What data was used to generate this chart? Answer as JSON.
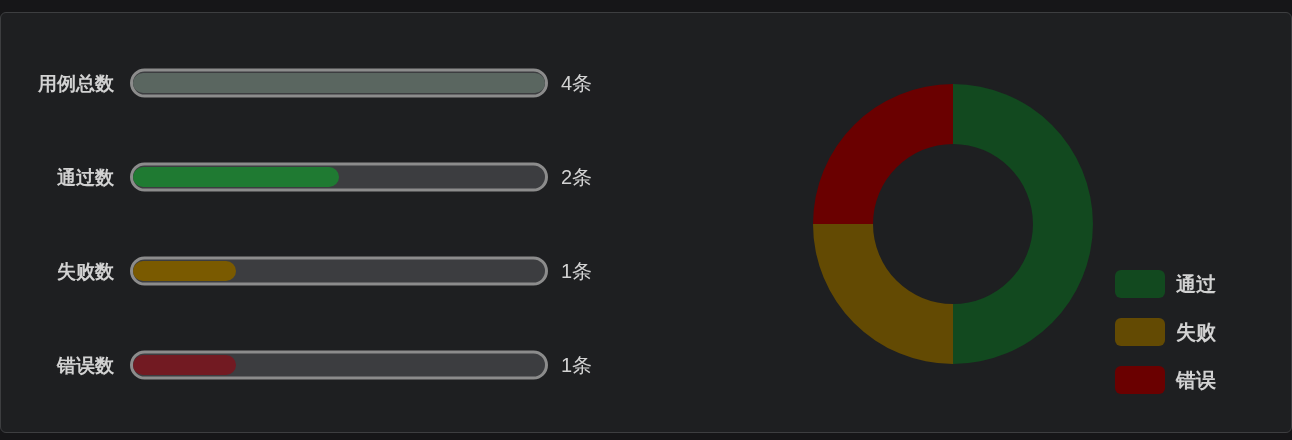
{
  "chart_data": [
    {
      "type": "bar",
      "orientation": "horizontal",
      "categories": [
        "用例总数",
        "通过数",
        "失败数",
        "错误数"
      ],
      "values": [
        4,
        2,
        1,
        1
      ],
      "colors": [
        "#5a6660",
        "#1f7a32",
        "#7a5a00",
        "#721a22"
      ],
      "value_labels": [
        "4条",
        "2条",
        "1条",
        "1条"
      ],
      "xlim": [
        0,
        4
      ],
      "tick_labels": "y"
    },
    {
      "type": "donut",
      "categories": [
        "通过",
        "失败",
        "错误"
      ],
      "values": [
        50,
        25,
        25
      ],
      "colors": [
        "#12491f",
        "#634a03",
        "#6a0000"
      ],
      "legend": "bottom right"
    }
  ]
}
